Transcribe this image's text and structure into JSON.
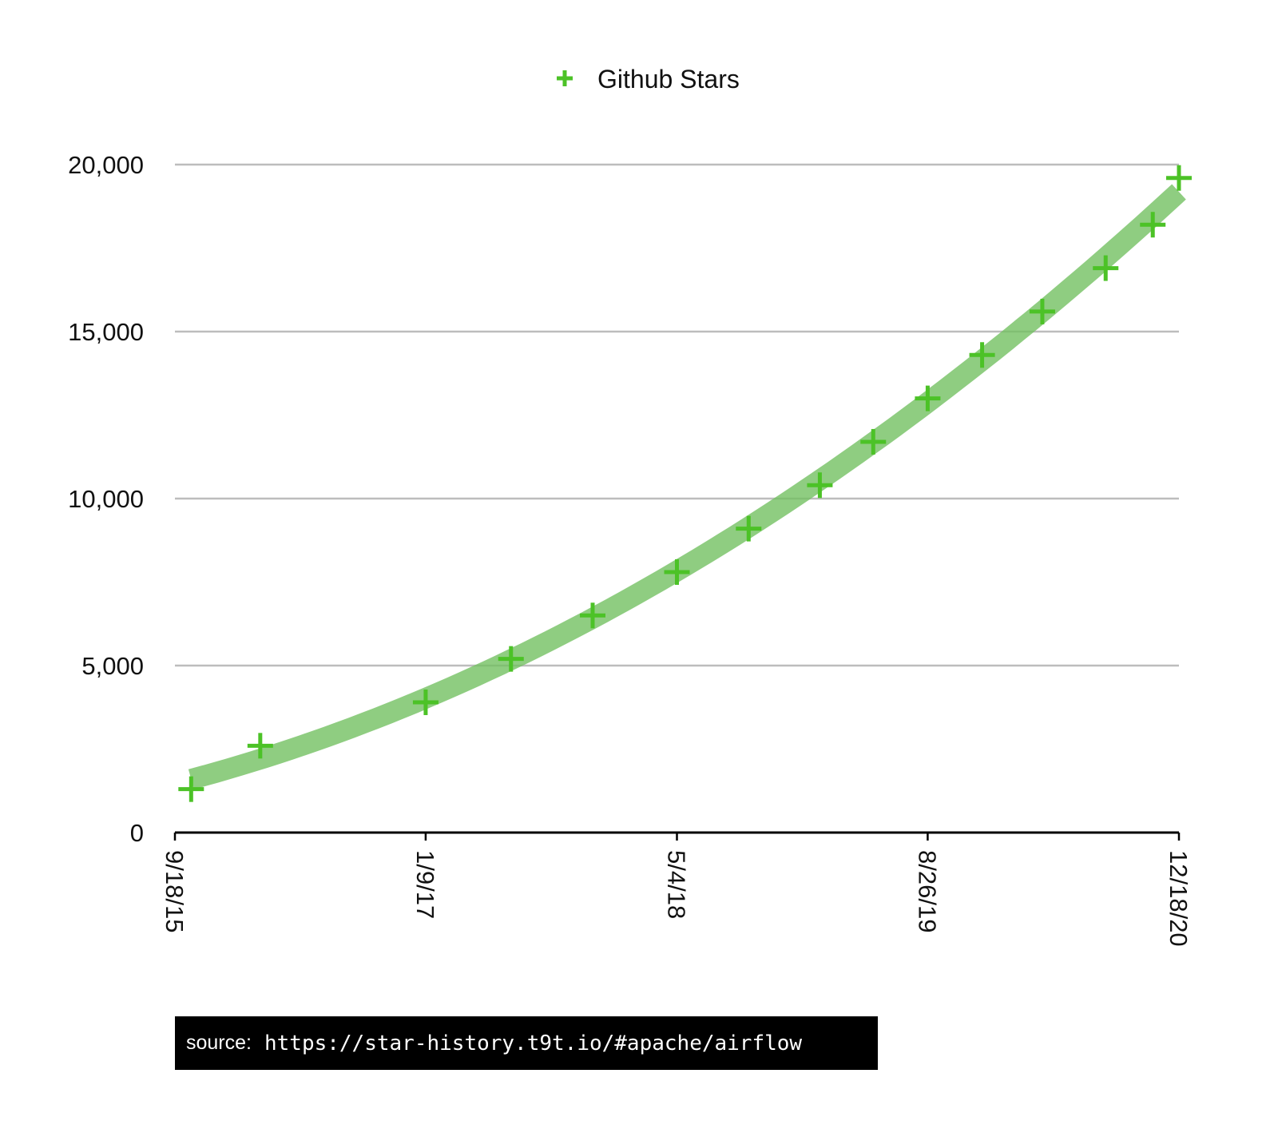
{
  "chart_data": {
    "type": "scatter",
    "legend": {
      "placement": "top-center",
      "entries": [
        "Github Stars"
      ]
    },
    "x_axis": {
      "ticks": [
        "9/18/15",
        "1/9/17",
        "5/4/18",
        "8/26/19",
        "12/18/20"
      ],
      "range": [
        "9/18/15",
        "12/18/20"
      ]
    },
    "y_axis": {
      "ticks": [
        "0",
        "5,000",
        "10,000",
        "15,000",
        "20,000"
      ],
      "range": [
        0,
        20000
      ],
      "grid": true
    },
    "series": [
      {
        "name": "Github Stars",
        "marker": "plus",
        "color": "#4cc227",
        "trendline": true,
        "trendline_color": "#6fbf5d",
        "points": [
          {
            "x": "10/19/15",
            "y": 1300
          },
          {
            "x": "2/28/16",
            "y": 2600
          },
          {
            "x": "1/9/17",
            "y": 3900
          },
          {
            "x": "6/21/17",
            "y": 5200
          },
          {
            "x": "11/24/17",
            "y": 6500
          },
          {
            "x": "5/4/18",
            "y": 7800
          },
          {
            "x": "9/18/18",
            "y": 9100
          },
          {
            "x": "2/1/19",
            "y": 10400
          },
          {
            "x": "5/14/19",
            "y": 11700
          },
          {
            "x": "8/26/19",
            "y": 13000
          },
          {
            "x": "12/8/19",
            "y": 14300
          },
          {
            "x": "4/1/20",
            "y": 15600
          },
          {
            "x": "7/31/20",
            "y": 16900
          },
          {
            "x": "10/29/20",
            "y": 18200
          },
          {
            "x": "12/18/20",
            "y": 19600
          }
        ]
      }
    ]
  },
  "source": {
    "label": "source:",
    "url": "https://star-history.t9t.io/#apache/airflow"
  }
}
